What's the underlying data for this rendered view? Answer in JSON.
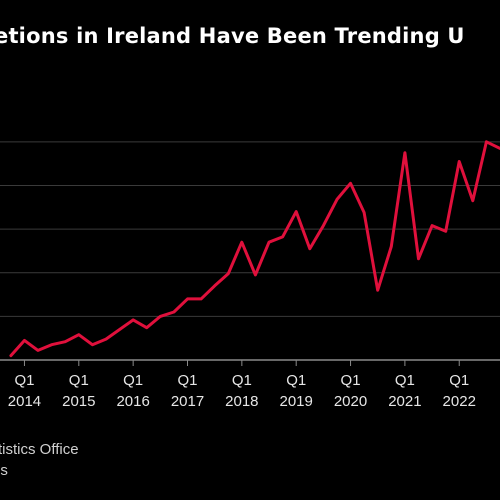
{
  "chart_data": {
    "type": "line",
    "title": "etions in Ireland Have Been Trending U",
    "xlabel": "",
    "ylabel": "",
    "x_ticks": [
      {
        "quarter": "Q1",
        "year": "2014"
      },
      {
        "quarter": "Q1",
        "year": "2015"
      },
      {
        "quarter": "Q1",
        "year": "2016"
      },
      {
        "quarter": "Q1",
        "year": "2017"
      },
      {
        "quarter": "Q1",
        "year": "2018"
      },
      {
        "quarter": "Q1",
        "year": "2019"
      },
      {
        "quarter": "Q1",
        "year": "2020"
      },
      {
        "quarter": "Q1",
        "year": "2021"
      },
      {
        "quarter": "Q1",
        "year": "2022"
      }
    ],
    "xlim": [
      2013.55,
      2022.75
    ],
    "ylim": [
      0,
      5.5
    ],
    "grid": true,
    "series": [
      {
        "color": "#e0103c",
        "points": [
          [
            2013.75,
            0.1
          ],
          [
            2014.0,
            0.45
          ],
          [
            2014.25,
            0.22
          ],
          [
            2014.5,
            0.35
          ],
          [
            2014.75,
            0.42
          ],
          [
            2015.0,
            0.58
          ],
          [
            2015.25,
            0.35
          ],
          [
            2015.5,
            0.48
          ],
          [
            2015.75,
            0.7
          ],
          [
            2016.0,
            0.92
          ],
          [
            2016.25,
            0.74
          ],
          [
            2016.5,
            1.0
          ],
          [
            2016.75,
            1.1
          ],
          [
            2017.0,
            1.4
          ],
          [
            2017.25,
            1.4
          ],
          [
            2017.5,
            1.7
          ],
          [
            2017.75,
            1.98
          ],
          [
            2018.0,
            2.7
          ],
          [
            2018.25,
            1.95
          ],
          [
            2018.5,
            2.7
          ],
          [
            2018.75,
            2.82
          ],
          [
            2019.0,
            3.4
          ],
          [
            2019.25,
            2.55
          ],
          [
            2019.5,
            3.08
          ],
          [
            2019.75,
            3.68
          ],
          [
            2020.0,
            4.05
          ],
          [
            2020.25,
            3.38
          ],
          [
            2020.5,
            1.6
          ],
          [
            2020.75,
            2.6
          ],
          [
            2021.0,
            4.75
          ],
          [
            2021.25,
            2.32
          ],
          [
            2021.5,
            3.08
          ],
          [
            2021.75,
            2.95
          ],
          [
            2022.0,
            4.55
          ],
          [
            2022.25,
            3.65
          ],
          [
            2022.5,
            5.0
          ],
          [
            2022.75,
            4.85
          ]
        ]
      }
    ]
  },
  "footer": {
    "source": "tistics Office",
    "note": "es"
  },
  "colors": {
    "background": "#000000",
    "gridline": "#3a3a3a",
    "line": "#e0103c",
    "text": "#e6e6e6"
  }
}
